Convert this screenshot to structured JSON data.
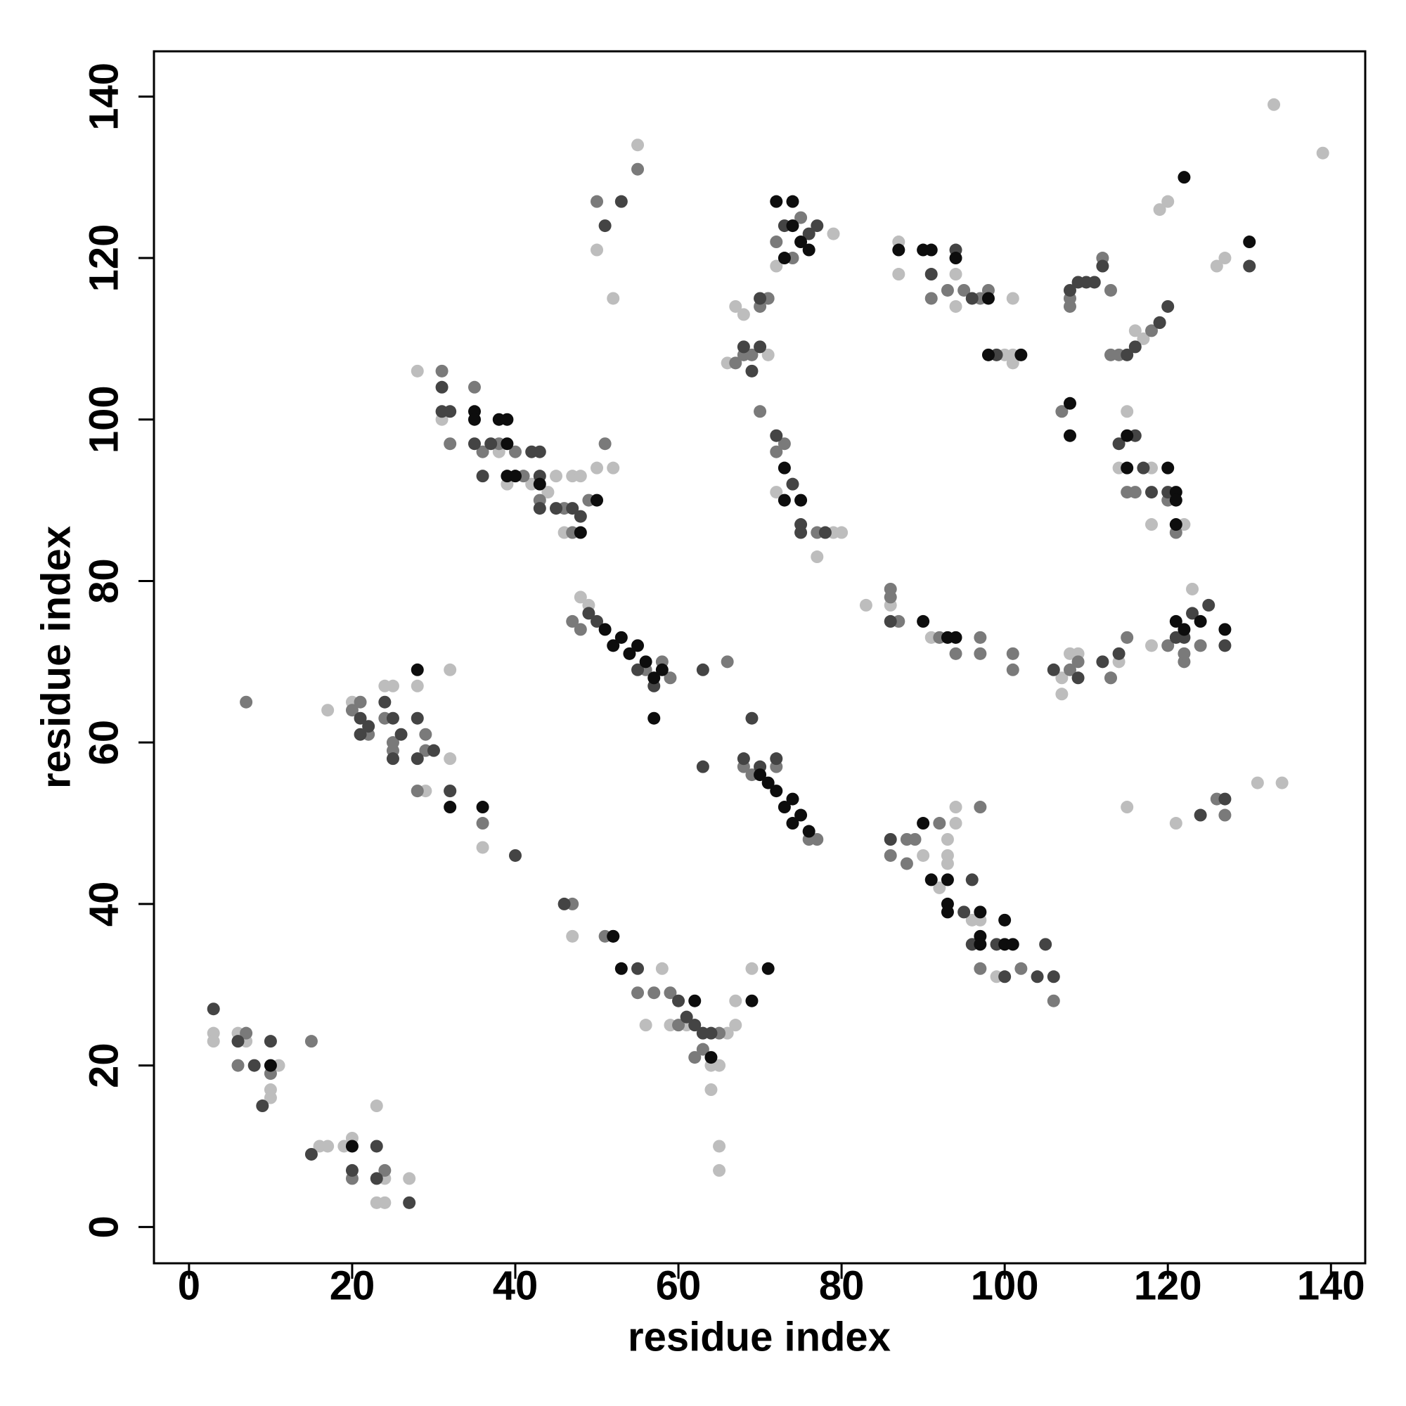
{
  "chart_data": {
    "type": "scatter",
    "x_label": "residue index",
    "y_label": "residue index",
    "xlim": [
      -4.3,
      144.2
    ],
    "ylim": [
      -4.5,
      145.6
    ],
    "xticks": [
      0,
      20,
      40,
      60,
      80,
      100,
      120,
      140
    ],
    "yticks": [
      0,
      20,
      40,
      60,
      80,
      100,
      120,
      140
    ],
    "series": [
      {
        "color": "#bdbdbd",
        "x": [
          3,
          3,
          6,
          7,
          10,
          10,
          11,
          16,
          17,
          19,
          20,
          23,
          23,
          24,
          24,
          27,
          17,
          20,
          24,
          25,
          28,
          28,
          29,
          32,
          32,
          36,
          28,
          31,
          38,
          39,
          42,
          44,
          45,
          47,
          48,
          46,
          47,
          48,
          49,
          50,
          52,
          52,
          50,
          55,
          47,
          58,
          56,
          59,
          61,
          64,
          64,
          65,
          65,
          65,
          66,
          67,
          67,
          69,
          66,
          67,
          68,
          71,
          72,
          72,
          77,
          79,
          80,
          79,
          83,
          86,
          87,
          87,
          91,
          94,
          94,
          94,
          92,
          93,
          93,
          93,
          94,
          90,
          96,
          97,
          99,
          100,
          101,
          101,
          101,
          107,
          107,
          108,
          109,
          113,
          114,
          115,
          114,
          118,
          118,
          119,
          120,
          122,
          126,
          127,
          133,
          139,
          131,
          134,
          115,
          121,
          118,
          123,
          116,
          117
        ],
        "values": [
          24,
          23,
          24,
          23,
          17,
          16,
          20,
          10,
          10,
          10,
          11,
          15,
          3,
          3,
          6,
          6,
          64,
          65,
          67,
          67,
          67,
          54,
          54,
          58,
          69,
          47,
          106,
          100,
          96,
          92,
          92,
          91,
          93,
          93,
          93,
          86,
          86,
          78,
          77,
          94,
          94,
          115,
          121,
          134,
          36,
          32,
          25,
          25,
          25,
          17,
          20,
          20,
          10,
          7,
          24,
          25,
          28,
          32,
          107,
          114,
          113,
          108,
          119,
          91,
          83,
          86,
          86,
          123,
          77,
          77,
          122,
          118,
          73,
          118,
          114,
          52,
          42,
          48,
          46,
          45,
          50,
          46,
          38,
          38,
          31,
          108,
          108,
          107,
          115,
          66,
          68,
          71,
          71,
          68,
          70,
          101,
          94,
          94,
          87,
          126,
          127,
          87,
          119,
          120,
          139,
          133,
          55,
          55,
          52,
          50,
          72,
          79,
          111,
          110
        ]
      },
      {
        "color": "#7a7a7a",
        "x": [
          7,
          15,
          10,
          7,
          6,
          20,
          24,
          21,
          20,
          22,
          24,
          25,
          25,
          29,
          29,
          28,
          32,
          36,
          31,
          32,
          35,
          36,
          38,
          40,
          41,
          43,
          46,
          47,
          49,
          51,
          50,
          55,
          47,
          51,
          55,
          57,
          59,
          60,
          62,
          63,
          65,
          66,
          70,
          72,
          73,
          77,
          71,
          72,
          75,
          74,
          67,
          68,
          69,
          70,
          86,
          86,
          87,
          92,
          94,
          97,
          97,
          101,
          101,
          86,
          88,
          88,
          89,
          92,
          97,
          97,
          102,
          106,
          108,
          109,
          113,
          115,
          119,
          118,
          113,
          114,
          112,
          113,
          91,
          93,
          95,
          97,
          98,
          108,
          108,
          107,
          116,
          115,
          120,
          121,
          126,
          127,
          122,
          122,
          124,
          120,
          58,
          56,
          59,
          47,
          48,
          68,
          69,
          72,
          76,
          77
        ],
        "values": [
          65,
          23,
          19,
          24,
          20,
          6,
          7,
          65,
          64,
          61,
          63,
          60,
          59,
          61,
          59,
          54,
          54,
          50,
          106,
          97,
          104,
          96,
          97,
          96,
          93,
          90,
          89,
          86,
          90,
          97,
          127,
          131,
          40,
          36,
          29,
          29,
          29,
          25,
          21,
          22,
          24,
          70,
          101,
          96,
          97,
          86,
          115,
          122,
          125,
          120,
          107,
          108,
          108,
          114,
          79,
          78,
          75,
          73,
          71,
          73,
          71,
          71,
          69,
          46,
          45,
          48,
          48,
          50,
          52,
          32,
          32,
          28,
          69,
          70,
          68,
          73,
          112,
          111,
          108,
          108,
          120,
          116,
          115,
          116,
          116,
          115,
          116,
          114,
          115,
          101,
          91,
          91,
          90,
          86,
          53,
          51,
          70,
          71,
          72,
          72,
          70,
          69,
          68,
          75,
          74,
          57,
          56,
          57,
          48,
          48
        ]
      },
      {
        "color": "#444444",
        "x": [
          3,
          6,
          8,
          10,
          9,
          15,
          20,
          23,
          23,
          27,
          21,
          21,
          22,
          24,
          25,
          25,
          28,
          28,
          32,
          31,
          31,
          32,
          35,
          37,
          42,
          43,
          43,
          43,
          45,
          47,
          48,
          46,
          51,
          53,
          52,
          55,
          60,
          61,
          62,
          63,
          64,
          63,
          63,
          68,
          69,
          70,
          72,
          70,
          68,
          69,
          70,
          72,
          74,
          75,
          75,
          78,
          86,
          86,
          91,
          94,
          96,
          108,
          109,
          110,
          111,
          112,
          115,
          116,
          119,
          120,
          114,
          116,
          117,
          118,
          120,
          121,
          122,
          123,
          125,
          127,
          130,
          124,
          127,
          96,
          95,
          96,
          99,
          100,
          104,
          105,
          106,
          106,
          109,
          112,
          114,
          40,
          36,
          26,
          30,
          49,
          50,
          55,
          57,
          73,
          76,
          77,
          99
        ],
        "values": [
          27,
          23,
          20,
          23,
          15,
          9,
          7,
          6,
          10,
          3,
          63,
          61,
          62,
          65,
          63,
          58,
          63,
          58,
          54,
          104,
          101,
          101,
          97,
          97,
          96,
          96,
          93,
          89,
          89,
          89,
          88,
          40,
          124,
          127,
          36,
          32,
          28,
          26,
          25,
          24,
          24,
          69,
          57,
          58,
          63,
          57,
          58,
          115,
          109,
          106,
          109,
          98,
          92,
          87,
          86,
          86,
          75,
          48,
          118,
          121,
          115,
          116,
          117,
          117,
          117,
          119,
          108,
          109,
          112,
          114,
          97,
          98,
          94,
          91,
          91,
          73,
          73,
          76,
          77,
          72,
          119,
          51,
          53,
          43,
          39,
          35,
          35,
          31,
          31,
          35,
          31,
          69,
          68,
          70,
          71,
          46,
          93,
          61,
          59,
          76,
          75,
          69,
          67,
          124,
          123,
          124,
          108
        ]
      },
      {
        "color": "#0d0d0d",
        "x": [
          10,
          20,
          28,
          32,
          36,
          35,
          35,
          38,
          39,
          39,
          39,
          40,
          43,
          48,
          50,
          52,
          53,
          57,
          62,
          64,
          69,
          71,
          73,
          73,
          75,
          72,
          74,
          73,
          74,
          75,
          76,
          87,
          90,
          91,
          94,
          93,
          94,
          98,
          98,
          102,
          108,
          108,
          115,
          115,
          120,
          121,
          121,
          121,
          122,
          130,
          90,
          91,
          93,
          93,
          93,
          97,
          97,
          97,
          100,
          101,
          100,
          90,
          121,
          122,
          124,
          127,
          51,
          52,
          53,
          54,
          55,
          56,
          57,
          58,
          70,
          71,
          72,
          73,
          74,
          75,
          74,
          76
        ],
        "values": [
          20,
          10,
          69,
          52,
          52,
          101,
          100,
          100,
          100,
          97,
          93,
          93,
          92,
          86,
          90,
          36,
          32,
          63,
          28,
          21,
          28,
          32,
          94,
          90,
          90,
          127,
          127,
          120,
          124,
          122,
          121,
          121,
          121,
          121,
          120,
          73,
          73,
          115,
          108,
          108,
          102,
          98,
          98,
          94,
          94,
          91,
          90,
          87,
          130,
          122,
          50,
          43,
          43,
          40,
          39,
          39,
          36,
          35,
          35,
          35,
          38,
          75,
          75,
          74,
          75,
          74,
          74,
          72,
          73,
          71,
          72,
          70,
          68,
          69,
          56,
          55,
          54,
          52,
          53,
          51,
          50,
          49
        ]
      }
    ]
  }
}
